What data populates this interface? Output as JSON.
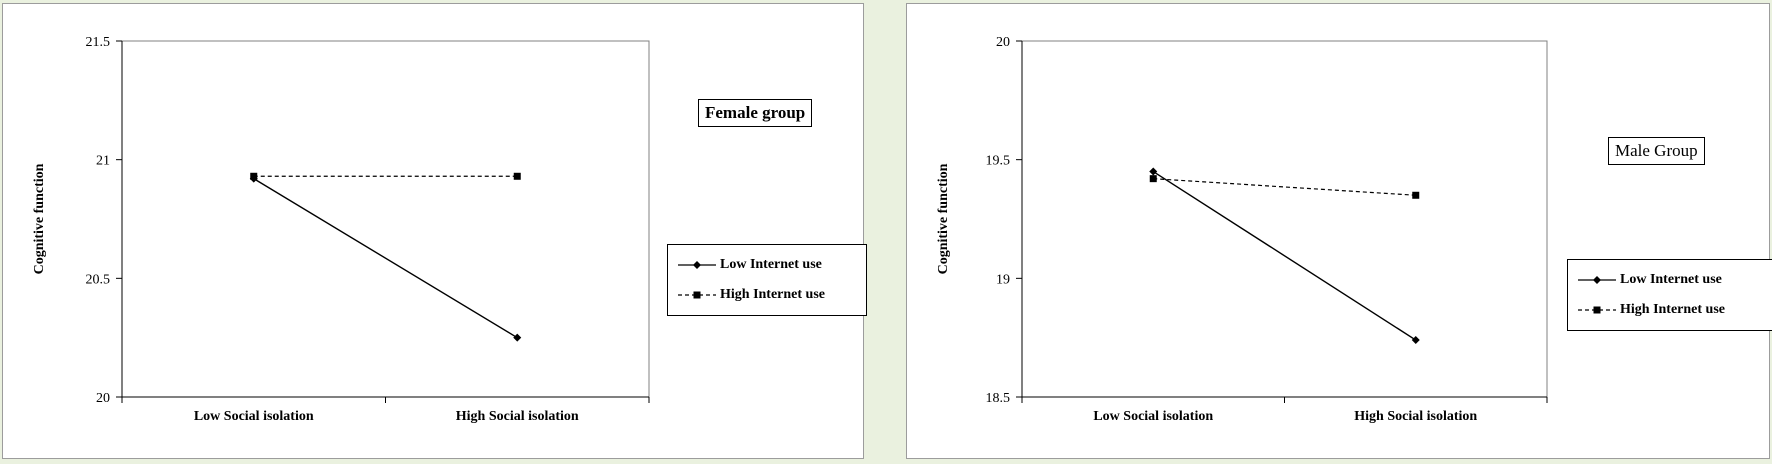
{
  "colors": {
    "line": "#000000",
    "panel_border": "#9c9c9c",
    "background": "#eaf1df"
  },
  "chart_data": [
    {
      "type": "line",
      "title": "Female group",
      "ylabel": "Cognitive function",
      "xlabel": "",
      "categories": [
        "Low Social isolation",
        "High Social isolation"
      ],
      "ylim": [
        20,
        21.5
      ],
      "yticks": [
        "21.5",
        "21",
        "20.5",
        "20"
      ],
      "grid": false,
      "legend_position": "right",
      "series": [
        {
          "name": "Low Internet use",
          "values": [
            20.92,
            20.25
          ],
          "style": "solid",
          "marker": "diamond"
        },
        {
          "name": "High Internet use",
          "values": [
            20.93,
            20.93
          ],
          "style": "dashed",
          "marker": "square"
        }
      ]
    },
    {
      "type": "line",
      "title": "Male Group",
      "ylabel": "Cognitive function",
      "xlabel": "",
      "categories": [
        "Low Social isolation",
        "High Social isolation"
      ],
      "ylim": [
        18.5,
        20
      ],
      "yticks": [
        "20",
        "19.5",
        "19",
        "18.5"
      ],
      "grid": false,
      "legend_position": "right",
      "series": [
        {
          "name": "Low Internet use",
          "values": [
            19.45,
            18.74
          ],
          "style": "solid",
          "marker": "diamond"
        },
        {
          "name": "High Internet use",
          "values": [
            19.42,
            19.35
          ],
          "style": "dashed",
          "marker": "square"
        }
      ]
    }
  ]
}
